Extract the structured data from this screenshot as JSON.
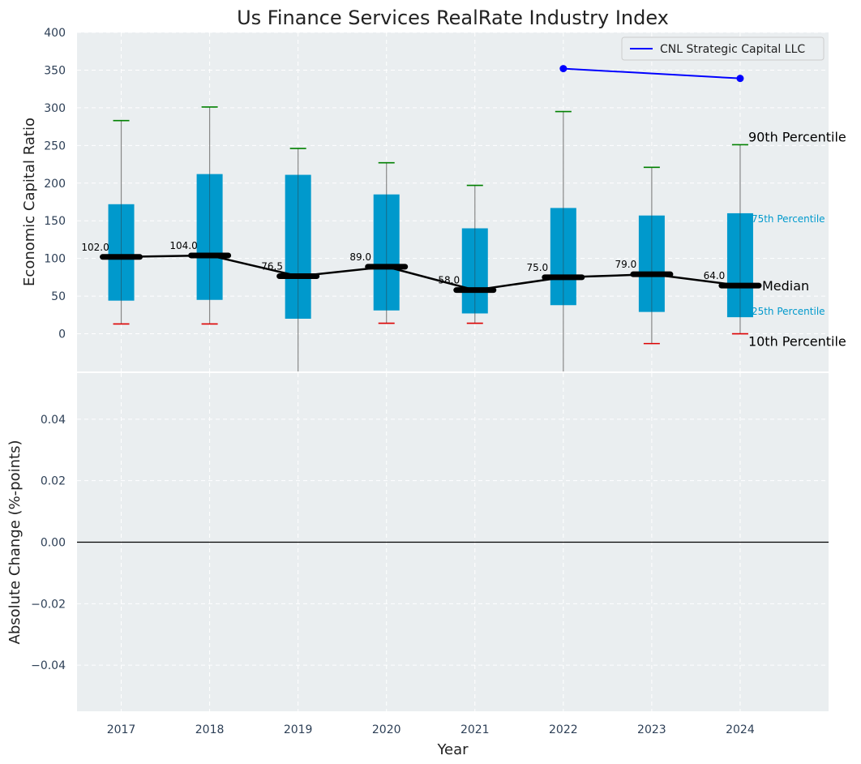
{
  "chart_data": [
    {
      "type": "box",
      "title": "Us Finance Services RealRate Industry Index",
      "xlabel": "",
      "ylabel": "Economic Capital Ratio",
      "ylim": [
        -50,
        400
      ],
      "yticks": [
        0,
        50,
        100,
        150,
        200,
        250,
        300,
        350,
        400
      ],
      "categories": [
        "2017",
        "2018",
        "2019",
        "2020",
        "2021",
        "2022",
        "2023",
        "2024"
      ],
      "boxes": [
        {
          "p10": 13,
          "p25": 44,
          "median": 102.0,
          "p75": 172,
          "p90": 283
        },
        {
          "p10": 13,
          "p25": 45,
          "median": 104.0,
          "p75": 212,
          "p90": 301
        },
        {
          "p10": -50,
          "p25": 20,
          "median": 76.5,
          "p75": 211,
          "p90": 246
        },
        {
          "p10": 14,
          "p25": 31,
          "median": 89.0,
          "p75": 185,
          "p90": 227
        },
        {
          "p10": 14,
          "p25": 27,
          "median": 58.0,
          "p75": 140,
          "p90": 197
        },
        {
          "p10": -50,
          "p25": 38,
          "median": 75.0,
          "p75": 167,
          "p90": 295
        },
        {
          "p10": -13,
          "p25": 29,
          "median": 79.0,
          "p75": 157,
          "p90": 221
        },
        {
          "p10": 0,
          "p25": 22,
          "median": 64.0,
          "p75": 160,
          "p90": 251
        }
      ],
      "median_labels": [
        "102.0",
        "104.0",
        "76.5",
        "89.0",
        "58.0",
        "75.0",
        "79.0",
        "64.0"
      ],
      "series": [
        {
          "name": "CNL Strategic Capital LLC",
          "x": [
            "2022",
            "2024"
          ],
          "values": [
            352,
            339
          ],
          "color": "#0000ff"
        }
      ],
      "legend": {
        "position": "top-right",
        "entries": [
          "CNL Strategic Capital LLC"
        ]
      },
      "annotations": {
        "p90": "90th Percentile",
        "p75": "75th Percentile",
        "median": "Median",
        "p25": "25th Percentile",
        "p10": "10th Percentile"
      },
      "grid": true,
      "colors": {
        "box": "#0099cc",
        "whisker": "#888888",
        "p90_cap": "#008000",
        "p10_cap": "#dd0000",
        "median": "#000000",
        "background": "#eaeef0"
      }
    },
    {
      "type": "line",
      "xlabel": "Year",
      "ylabel": "Absolute Change (%-points)",
      "ylim": [
        -0.055,
        0.055
      ],
      "yticks": [
        "-0.04",
        "-0.02",
        "0.00",
        "0.02",
        "0.04"
      ],
      "ytick_values": [
        -0.04,
        -0.02,
        0.0,
        0.02,
        0.04
      ],
      "categories": [
        "2017",
        "2018",
        "2019",
        "2020",
        "2021",
        "2022",
        "2023",
        "2024"
      ],
      "series": [],
      "reference_line": 0,
      "grid": true
    }
  ]
}
